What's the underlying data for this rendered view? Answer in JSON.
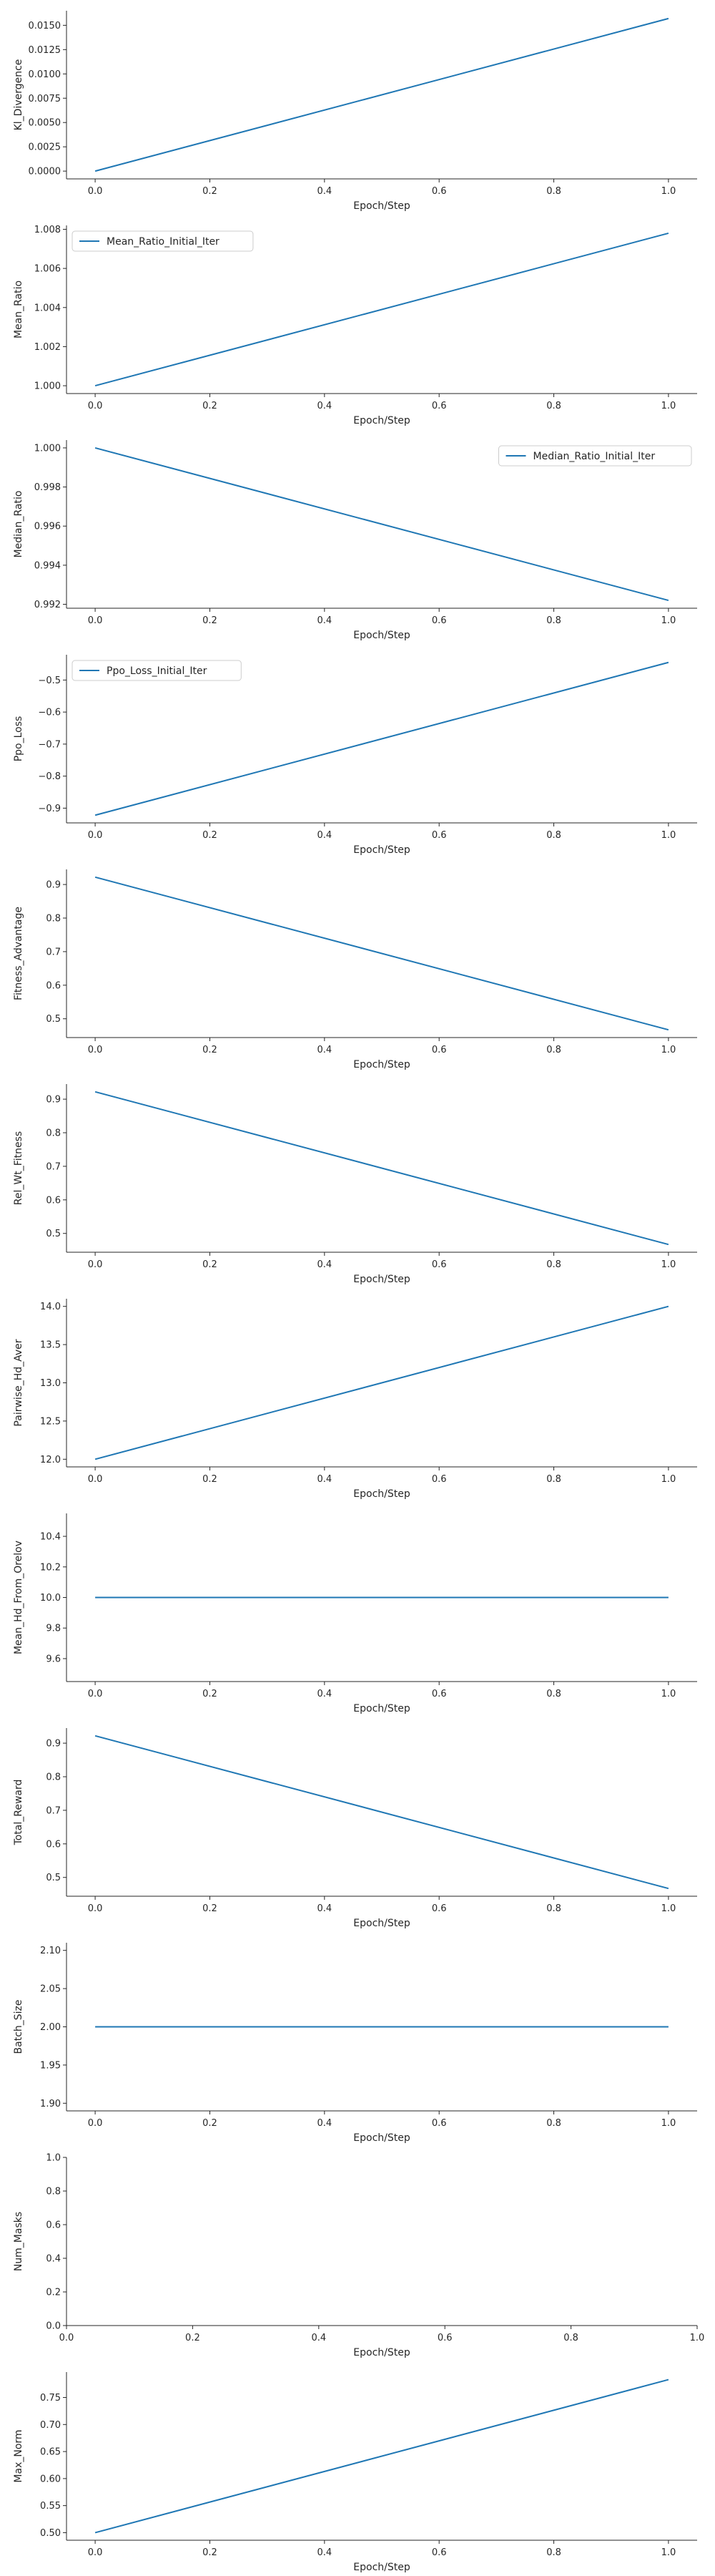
{
  "colors": {
    "line": "#1f77b4",
    "axis": "#262626",
    "legend_border": "#cccccc"
  },
  "chart_data": [
    {
      "type": "line",
      "xlabel": "Epoch/Step",
      "ylabel": "Kl_Divergence",
      "x": [
        0.0,
        1.0
      ],
      "series": [
        {
          "values": [
            0.0,
            0.0157
          ]
        }
      ],
      "xlim": [
        -0.05,
        1.05
      ],
      "ylim": [
        -0.0008,
        0.0165
      ],
      "xticks": [
        0.0,
        0.2,
        0.4,
        0.6,
        0.8,
        1.0
      ],
      "xtick_labels": [
        "0.0",
        "0.2",
        "0.4",
        "0.6",
        "0.8",
        "1.0"
      ],
      "yticks": [
        0.0,
        0.0025,
        0.005,
        0.0075,
        0.01,
        0.0125,
        0.015
      ],
      "ytick_labels": [
        "0.0000",
        "0.0025",
        "0.0050",
        "0.0075",
        "0.0100",
        "0.0125",
        "0.0150"
      ],
      "grid": false,
      "legend": null
    },
    {
      "type": "line",
      "xlabel": "Epoch/Step",
      "ylabel": "Mean_Ratio",
      "x": [
        0.0,
        1.0
      ],
      "series": [
        {
          "name": "Mean_Ratio_Initial_Iter",
          "values": [
            1.0,
            1.0078
          ]
        }
      ],
      "xlim": [
        -0.05,
        1.05
      ],
      "ylim": [
        0.9996,
        1.0082
      ],
      "xticks": [
        0.0,
        0.2,
        0.4,
        0.6,
        0.8,
        1.0
      ],
      "xtick_labels": [
        "0.0",
        "0.2",
        "0.4",
        "0.6",
        "0.8",
        "1.0"
      ],
      "yticks": [
        1.0,
        1.002,
        1.004,
        1.006,
        1.008
      ],
      "ytick_labels": [
        "1.000",
        "1.002",
        "1.004",
        "1.006",
        "1.008"
      ],
      "grid": false,
      "legend": "top-left"
    },
    {
      "type": "line",
      "xlabel": "Epoch/Step",
      "ylabel": "Median_Ratio",
      "x": [
        0.0,
        1.0
      ],
      "series": [
        {
          "name": "Median_Ratio_Initial_Iter",
          "values": [
            1.0,
            0.9922
          ]
        }
      ],
      "xlim": [
        -0.05,
        1.05
      ],
      "ylim": [
        0.9918,
        1.0004
      ],
      "xticks": [
        0.0,
        0.2,
        0.4,
        0.6,
        0.8,
        1.0
      ],
      "xtick_labels": [
        "0.0",
        "0.2",
        "0.4",
        "0.6",
        "0.8",
        "1.0"
      ],
      "yticks": [
        0.992,
        0.994,
        0.996,
        0.998,
        1.0
      ],
      "ytick_labels": [
        "0.992",
        "0.994",
        "0.996",
        "0.998",
        "1.000"
      ],
      "grid": false,
      "legend": "top-right"
    },
    {
      "type": "line",
      "xlabel": "Epoch/Step",
      "ylabel": "Ppo_Loss",
      "x": [
        0.0,
        1.0
      ],
      "series": [
        {
          "name": "Ppo_Loss_Initial_Iter",
          "values": [
            -0.922,
            -0.445
          ]
        }
      ],
      "xlim": [
        -0.05,
        1.05
      ],
      "ylim": [
        -0.946,
        -0.421
      ],
      "xticks": [
        0.0,
        0.2,
        0.4,
        0.6,
        0.8,
        1.0
      ],
      "xtick_labels": [
        "0.0",
        "0.2",
        "0.4",
        "0.6",
        "0.8",
        "1.0"
      ],
      "yticks": [
        -0.9,
        -0.8,
        -0.7,
        -0.6,
        -0.5
      ],
      "ytick_labels": [
        "−0.9",
        "−0.8",
        "−0.7",
        "−0.6",
        "−0.5"
      ],
      "grid": false,
      "legend": "top-left"
    },
    {
      "type": "line",
      "xlabel": "Epoch/Step",
      "ylabel": "Fitness_Advantage",
      "x": [
        0.0,
        1.0
      ],
      "series": [
        {
          "values": [
            0.922,
            0.467
          ]
        }
      ],
      "xlim": [
        -0.05,
        1.05
      ],
      "ylim": [
        0.444,
        0.945
      ],
      "xticks": [
        0.0,
        0.2,
        0.4,
        0.6,
        0.8,
        1.0
      ],
      "xtick_labels": [
        "0.0",
        "0.2",
        "0.4",
        "0.6",
        "0.8",
        "1.0"
      ],
      "yticks": [
        0.5,
        0.6,
        0.7,
        0.8,
        0.9
      ],
      "ytick_labels": [
        "0.5",
        "0.6",
        "0.7",
        "0.8",
        "0.9"
      ],
      "grid": false,
      "legend": null
    },
    {
      "type": "line",
      "xlabel": "Epoch/Step",
      "ylabel": "Rel_Wt_Fitness",
      "x": [
        0.0,
        1.0
      ],
      "series": [
        {
          "values": [
            0.922,
            0.467
          ]
        }
      ],
      "xlim": [
        -0.05,
        1.05
      ],
      "ylim": [
        0.444,
        0.945
      ],
      "xticks": [
        0.0,
        0.2,
        0.4,
        0.6,
        0.8,
        1.0
      ],
      "xtick_labels": [
        "0.0",
        "0.2",
        "0.4",
        "0.6",
        "0.8",
        "1.0"
      ],
      "yticks": [
        0.5,
        0.6,
        0.7,
        0.8,
        0.9
      ],
      "ytick_labels": [
        "0.5",
        "0.6",
        "0.7",
        "0.8",
        "0.9"
      ],
      "grid": false,
      "legend": null
    },
    {
      "type": "line",
      "xlabel": "Epoch/Step",
      "ylabel": "Pairwise_Hd_Aver",
      "x": [
        0.0,
        1.0
      ],
      "series": [
        {
          "values": [
            12.0,
            14.0
          ]
        }
      ],
      "xlim": [
        -0.05,
        1.05
      ],
      "ylim": [
        11.9,
        14.1
      ],
      "xticks": [
        0.0,
        0.2,
        0.4,
        0.6,
        0.8,
        1.0
      ],
      "xtick_labels": [
        "0.0",
        "0.2",
        "0.4",
        "0.6",
        "0.8",
        "1.0"
      ],
      "yticks": [
        12.0,
        12.5,
        13.0,
        13.5,
        14.0
      ],
      "ytick_labels": [
        "12.0",
        "12.5",
        "13.0",
        "13.5",
        "14.0"
      ],
      "grid": false,
      "legend": null
    },
    {
      "type": "line",
      "xlabel": "Epoch/Step",
      "ylabel": "Mean_Hd_From_Orelov",
      "x": [
        0.0,
        1.0
      ],
      "series": [
        {
          "values": [
            10.0,
            10.0
          ]
        }
      ],
      "xlim": [
        -0.05,
        1.05
      ],
      "ylim": [
        9.45,
        10.55
      ],
      "xticks": [
        0.0,
        0.2,
        0.4,
        0.6,
        0.8,
        1.0
      ],
      "xtick_labels": [
        "0.0",
        "0.2",
        "0.4",
        "0.6",
        "0.8",
        "1.0"
      ],
      "yticks": [
        9.6,
        9.8,
        10.0,
        10.2,
        10.4
      ],
      "ytick_labels": [
        "9.6",
        "9.8",
        "10.0",
        "10.2",
        "10.4"
      ],
      "grid": false,
      "legend": null
    },
    {
      "type": "line",
      "xlabel": "Epoch/Step",
      "ylabel": "Total_Reward",
      "x": [
        0.0,
        1.0
      ],
      "series": [
        {
          "values": [
            0.922,
            0.467
          ]
        }
      ],
      "xlim": [
        -0.05,
        1.05
      ],
      "ylim": [
        0.444,
        0.945
      ],
      "xticks": [
        0.0,
        0.2,
        0.4,
        0.6,
        0.8,
        1.0
      ],
      "xtick_labels": [
        "0.0",
        "0.2",
        "0.4",
        "0.6",
        "0.8",
        "1.0"
      ],
      "yticks": [
        0.5,
        0.6,
        0.7,
        0.8,
        0.9
      ],
      "ytick_labels": [
        "0.5",
        "0.6",
        "0.7",
        "0.8",
        "0.9"
      ],
      "grid": false,
      "legend": null
    },
    {
      "type": "line",
      "xlabel": "Epoch/Step",
      "ylabel": "Batch_Size",
      "x": [
        0.0,
        1.0
      ],
      "series": [
        {
          "values": [
            2.0,
            2.0
          ]
        }
      ],
      "xlim": [
        -0.05,
        1.05
      ],
      "ylim": [
        1.89,
        2.11
      ],
      "xticks": [
        0.0,
        0.2,
        0.4,
        0.6,
        0.8,
        1.0
      ],
      "xtick_labels": [
        "0.0",
        "0.2",
        "0.4",
        "0.6",
        "0.8",
        "1.0"
      ],
      "yticks": [
        1.9,
        1.95,
        2.0,
        2.05,
        2.1
      ],
      "ytick_labels": [
        "1.90",
        "1.95",
        "2.00",
        "2.05",
        "2.10"
      ],
      "grid": false,
      "legend": null
    },
    {
      "type": "line",
      "xlabel": "Epoch/Step",
      "ylabel": "Num_Masks",
      "x": [],
      "series": [],
      "xlim": [
        0.0,
        1.0
      ],
      "ylim": [
        0.0,
        1.0
      ],
      "xticks": [
        0.0,
        0.2,
        0.4,
        0.6,
        0.8,
        1.0
      ],
      "xtick_labels": [
        "0.0",
        "0.2",
        "0.4",
        "0.6",
        "0.8",
        "1.0"
      ],
      "yticks": [
        0.0,
        0.2,
        0.4,
        0.6,
        0.8,
        1.0
      ],
      "ytick_labels": [
        "0.0",
        "0.2",
        "0.4",
        "0.6",
        "0.8",
        "1.0"
      ],
      "grid": false,
      "legend": null
    },
    {
      "type": "line",
      "xlabel": "Epoch/Step",
      "ylabel": "Max_Norm",
      "x": [
        0.0,
        1.0
      ],
      "series": [
        {
          "values": [
            0.5,
            0.783
          ]
        }
      ],
      "xlim": [
        -0.05,
        1.05
      ],
      "ylim": [
        0.486,
        0.797
      ],
      "xticks": [
        0.0,
        0.2,
        0.4,
        0.6,
        0.8,
        1.0
      ],
      "xtick_labels": [
        "0.0",
        "0.2",
        "0.4",
        "0.6",
        "0.8",
        "1.0"
      ],
      "yticks": [
        0.5,
        0.55,
        0.6,
        0.65,
        0.7,
        0.75
      ],
      "ytick_labels": [
        "0.50",
        "0.55",
        "0.60",
        "0.65",
        "0.70",
        "0.75"
      ],
      "grid": false,
      "legend": null
    }
  ]
}
